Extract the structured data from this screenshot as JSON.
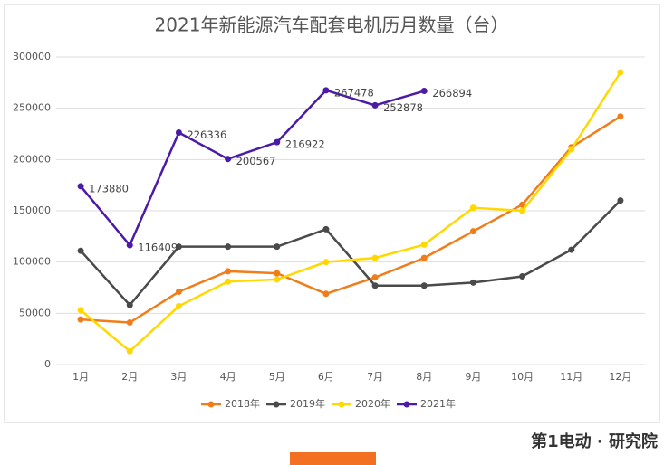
{
  "chart_data": {
    "type": "line",
    "title": "2021年新能源汽车配套电机历月数量（台）",
    "categories": [
      "1月",
      "2月",
      "3月",
      "4月",
      "5月",
      "6月",
      "7月",
      "8月",
      "9月",
      "10月",
      "11月",
      "12月"
    ],
    "series": [
      {
        "name": "2018年",
        "color": "#f07d1a",
        "values": [
          44000,
          41000,
          71000,
          91000,
          89000,
          69000,
          85000,
          104000,
          130000,
          156000,
          212000,
          242000
        ]
      },
      {
        "name": "2019年",
        "color": "#4a4a4a",
        "values": [
          111000,
          58000,
          115000,
          115000,
          115000,
          132000,
          77000,
          77000,
          80000,
          86000,
          112000,
          160000
        ]
      },
      {
        "name": "2020年",
        "color": "#ffd800",
        "values": [
          53000,
          13000,
          57000,
          81000,
          83000,
          100000,
          104000,
          117000,
          153000,
          150000,
          210000,
          285000
        ]
      },
      {
        "name": "2021年",
        "color": "#4b1ba8",
        "values": [
          173880,
          116409,
          226336,
          200567,
          216922,
          267478,
          252878,
          266894,
          null,
          null,
          null,
          null
        ],
        "data_labels": true
      }
    ],
    "ylim": [
      0,
      300000
    ],
    "yticks": [
      0,
      50000,
      100000,
      150000,
      200000,
      250000,
      300000
    ],
    "grid": true,
    "legend": "bottom",
    "footer": "第1电动 · 研究院"
  }
}
